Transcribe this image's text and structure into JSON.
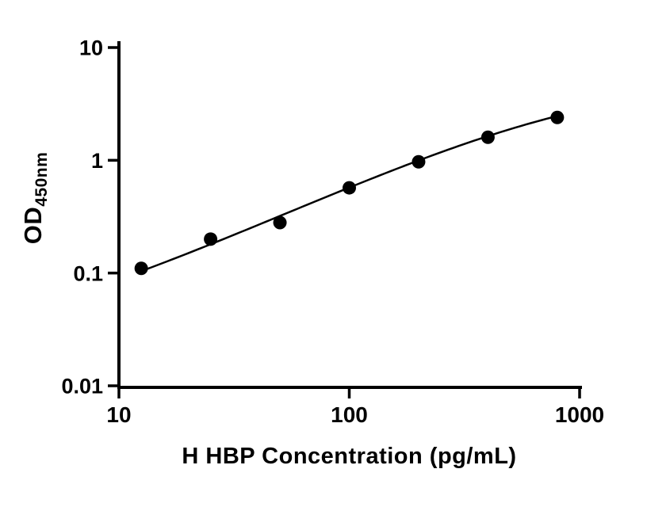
{
  "chart_data": {
    "type": "scatter",
    "title": "",
    "xlabel": "H HBP Concentration (pg/mL)",
    "ylabel": "OD450nm",
    "ylabel_main": "OD",
    "ylabel_sub": "450nm",
    "x_scale": "log",
    "y_scale": "log",
    "xlim": [
      10,
      1000
    ],
    "ylim": [
      0.01,
      10
    ],
    "x_ticks": [
      10,
      100,
      1000
    ],
    "x_tick_labels": [
      "10",
      "100",
      "1000"
    ],
    "y_ticks": [
      10,
      1,
      0.1,
      0.01
    ],
    "y_tick_labels": [
      "10",
      "1",
      "0.1",
      "0.01"
    ],
    "grid": false,
    "legend": "none",
    "series": [
      {
        "x": [
          12.5,
          25,
          50,
          100,
          200,
          400,
          800
        ],
        "y": [
          0.11,
          0.2,
          0.28,
          0.57,
          0.97,
          1.6,
          2.4
        ],
        "marker": "circle",
        "marker_color": "#000000",
        "line_color": "#000000"
      }
    ],
    "fit_curve": {
      "model": "4PL",
      "a": 0.02,
      "b": 0.95,
      "c": 1000,
      "d": 5.5,
      "x_range": [
        12.5,
        800
      ]
    }
  },
  "colors": {
    "background": "#ffffff",
    "axis": "#000000",
    "point": "#000000",
    "curve": "#000000",
    "text": "#000000"
  }
}
